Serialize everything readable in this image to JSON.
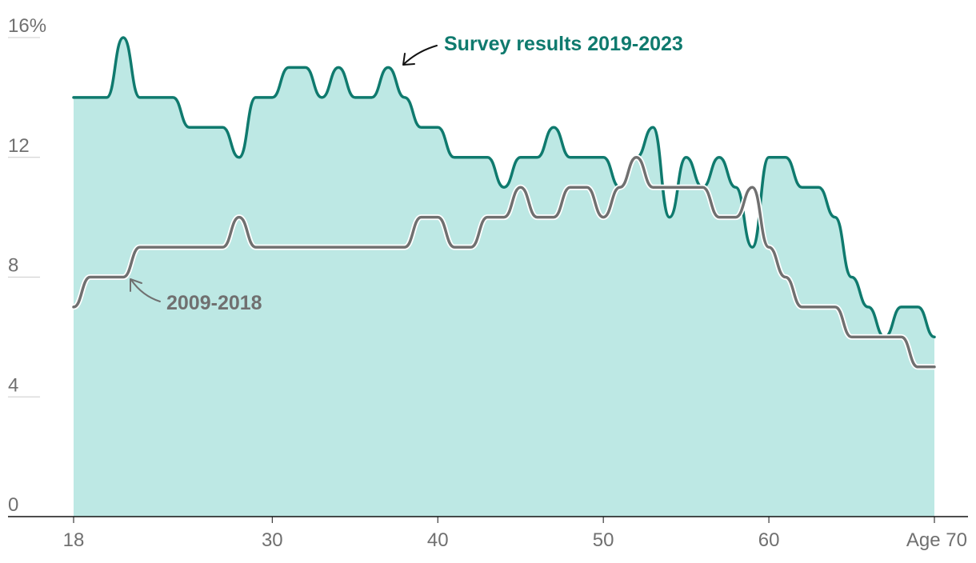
{
  "chart_data": {
    "type": "area",
    "title": "",
    "xlabel": "",
    "ylabel": "",
    "xlim": [
      18,
      70
    ],
    "ylim": [
      0,
      16
    ],
    "y_ticks": [
      {
        "value": 0,
        "label": "0"
      },
      {
        "value": 4,
        "label": "4"
      },
      {
        "value": 8,
        "label": "8"
      },
      {
        "value": 12,
        "label": "12"
      },
      {
        "value": 16,
        "label": "16%"
      }
    ],
    "x_ticks": [
      {
        "value": 18,
        "label": "18"
      },
      {
        "value": 30,
        "label": "30"
      },
      {
        "value": 40,
        "label": "40"
      },
      {
        "value": 50,
        "label": "50"
      },
      {
        "value": 60,
        "label": "60"
      },
      {
        "value": 70,
        "label": "Age 70"
      }
    ],
    "grid": true,
    "series": [
      {
        "name": "Survey results 2019-2023",
        "style": "filled area with line",
        "color": "#0f7a6e",
        "fill": "#bde8e4",
        "x": [
          18,
          19,
          20,
          21,
          22,
          23,
          24,
          25,
          26,
          27,
          28,
          29,
          30,
          31,
          32,
          33,
          34,
          35,
          36,
          37,
          38,
          39,
          40,
          41,
          42,
          43,
          44,
          45,
          46,
          47,
          48,
          49,
          50,
          51,
          52,
          53,
          54,
          55,
          56,
          57,
          58,
          59,
          60,
          61,
          62,
          63,
          64,
          65,
          66,
          67,
          68,
          69,
          70
        ],
        "y": [
          14,
          14,
          14,
          16,
          14,
          14,
          14,
          13,
          13,
          13,
          12,
          14,
          14,
          15,
          15,
          14,
          15,
          14,
          14,
          15,
          14,
          13,
          13,
          12,
          12,
          12,
          11,
          12,
          12,
          13,
          12,
          12,
          12,
          11,
          12,
          13,
          10,
          12,
          11,
          12,
          11,
          9,
          12,
          12,
          11,
          11,
          10,
          8,
          7,
          6,
          7,
          7,
          6
        ]
      },
      {
        "name": "2009-2018",
        "style": "line",
        "color": "#707070",
        "x": [
          18,
          19,
          20,
          21,
          22,
          23,
          24,
          25,
          26,
          27,
          28,
          29,
          30,
          31,
          32,
          33,
          34,
          35,
          36,
          37,
          38,
          39,
          40,
          41,
          42,
          43,
          44,
          45,
          46,
          47,
          48,
          49,
          50,
          51,
          52,
          53,
          54,
          55,
          56,
          57,
          58,
          59,
          60,
          61,
          62,
          63,
          64,
          65,
          66,
          67,
          68,
          69,
          70
        ],
        "y": [
          7,
          8,
          8,
          8,
          9,
          9,
          9,
          9,
          9,
          9,
          10,
          9,
          9,
          9,
          9,
          9,
          9,
          9,
          9,
          9,
          9,
          10,
          10,
          9,
          9,
          10,
          10,
          11,
          10,
          10,
          11,
          11,
          10,
          11,
          12,
          11,
          11,
          11,
          11,
          10,
          10,
          11,
          9,
          8,
          7,
          7,
          7,
          6,
          6,
          6,
          6,
          5,
          5
        ]
      }
    ]
  }
}
